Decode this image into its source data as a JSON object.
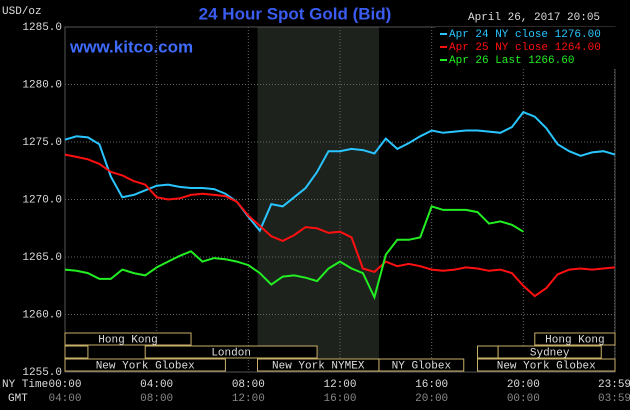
{
  "chart_data": {
    "type": "line",
    "title": "24 Hour Spot Gold (Bid)",
    "date": "April 26, 2017 20:05",
    "y_label": "USD/oz",
    "watermark": "www.kitco.com",
    "x_axis_label": "NY Time",
    "x_axis_label_2": "GMT",
    "x": [
      0,
      0.5,
      1,
      1.5,
      2,
      2.5,
      3,
      3.5,
      4,
      4.5,
      5,
      5.5,
      6,
      6.5,
      7,
      7.5,
      8,
      8.5,
      9,
      9.5,
      10,
      10.5,
      11,
      11.5,
      12,
      12.5,
      13,
      13.5,
      14,
      14.5,
      15,
      15.5,
      16,
      16.5,
      17,
      17.5,
      18,
      18.5,
      19,
      19.5,
      20,
      20.5,
      21,
      21.5,
      22,
      22.5,
      23,
      23.5,
      24
    ],
    "series": [
      {
        "name": "Apr 24 NY close 1276.00",
        "color": "#29c5ff",
        "values": [
          1275.2,
          1275.5,
          1275.4,
          1274.8,
          1272,
          1270.2,
          1270.4,
          1270.8,
          1271.2,
          1271.3,
          1271.1,
          1271,
          1271,
          1270.9,
          1270.5,
          1269.8,
          1268.5,
          1267.3,
          1269.6,
          1269.4,
          1270.2,
          1271,
          1272.4,
          1274.2,
          1274.2,
          1274.4,
          1274.3,
          1274,
          1275.3,
          1274.4,
          1274.9,
          1275.5,
          1276,
          1275.8,
          1275.9,
          1276,
          1276,
          1275.9,
          1275.8,
          1276.3,
          1277.6,
          1277.2,
          1276.2,
          1274.8,
          1274.2,
          1273.8,
          1274.1,
          1274.2,
          1273.9
        ]
      },
      {
        "name": "Apr 25 NY close 1264.00",
        "color": "#ff1010",
        "values": [
          1273.9,
          1273.7,
          1273.5,
          1273.1,
          1272.4,
          1272.1,
          1271.6,
          1271.3,
          1270.2,
          1270,
          1270.1,
          1270.4,
          1270.5,
          1270.4,
          1270.3,
          1269.8,
          1268.6,
          1267.7,
          1266.8,
          1266.4,
          1266.9,
          1267.6,
          1267.5,
          1267.1,
          1267.2,
          1266.7,
          1264,
          1263.7,
          1264.6,
          1264.2,
          1264.4,
          1264.2,
          1263.9,
          1263.8,
          1263.9,
          1264.1,
          1264,
          1263.8,
          1263.9,
          1263.6,
          1262.5,
          1261.6,
          1262.3,
          1263.5,
          1263.9,
          1264,
          1263.9,
          1264,
          1264.1
        ]
      },
      {
        "name": "Apr 26 Last 1266.60",
        "color": "#22ee22",
        "values": [
          1263.9,
          1263.8,
          1263.6,
          1263.1,
          1263.1,
          1263.9,
          1263.6,
          1263.4,
          1264.1,
          1264.6,
          1265.1,
          1265.5,
          1264.6,
          1264.9,
          1264.8,
          1264.6,
          1264.3,
          1263.6,
          1262.6,
          1263.3,
          1263.4,
          1263.2,
          1262.9,
          1264,
          1264.6,
          1264,
          1263.6,
          1261.5,
          1265.2,
          1266.5,
          1266.5,
          1266.7,
          1269.4,
          1269.1,
          1269.1,
          1269.1,
          1268.9,
          1267.9,
          1268.1,
          1267.8,
          1267.2,
          null,
          null,
          null,
          null,
          null,
          null,
          null,
          null
        ]
      }
    ],
    "xlim": [
      0,
      24
    ],
    "ylim": [
      1255,
      1285
    ],
    "xticks": [
      {
        "value": 0,
        "label": "00:00"
      },
      {
        "value": 4,
        "label": "04:00"
      },
      {
        "value": 8,
        "label": "08:00"
      },
      {
        "value": 12,
        "label": "12:00"
      },
      {
        "value": 16,
        "label": "16:00"
      },
      {
        "value": 20,
        "label": "20:00"
      },
      {
        "value": 23.98,
        "label": "23:59"
      }
    ],
    "gmt_labels": [
      "04:00",
      "08:00",
      "12:00",
      "16:00",
      "20:00",
      "00:00",
      "03:59"
    ],
    "yticks": [
      {
        "value": 1285,
        "label": "1285.0"
      },
      {
        "value": 1280,
        "label": "1280.0"
      },
      {
        "value": 1275,
        "label": "1275.0"
      },
      {
        "value": 1270,
        "label": "1270.0"
      },
      {
        "value": 1265,
        "label": "1265.0"
      },
      {
        "value": 1260,
        "label": "1260.0"
      },
      {
        "value": 1255,
        "label": "1255.0"
      }
    ],
    "grid": true,
    "highlight": [
      8.4,
      13.7
    ],
    "session_rows": [
      [
        {
          "name": "Hong Kong",
          "start": 0,
          "end": 5.5
        },
        {
          "name": "Hong Kong",
          "start": 20.5,
          "end": 24
        }
      ],
      [
        {
          "start": 0,
          "end": 1
        },
        {
          "name": "London",
          "start": 3.5,
          "end": 11
        },
        {
          "start": 18,
          "end": 18.9
        },
        {
          "name": "Sydney",
          "start": 18.9,
          "end": 23.4
        }
      ],
      [
        {
          "name": "New York Globex",
          "start": 0,
          "end": 7
        },
        {
          "name": "New York NYMEX",
          "start": 8.4,
          "end": 13.7
        },
        {
          "name": "NY Globex",
          "start": 13.7,
          "end": 17.4
        },
        {
          "name": "New York Globex",
          "start": 18,
          "end": 24
        }
      ]
    ]
  }
}
